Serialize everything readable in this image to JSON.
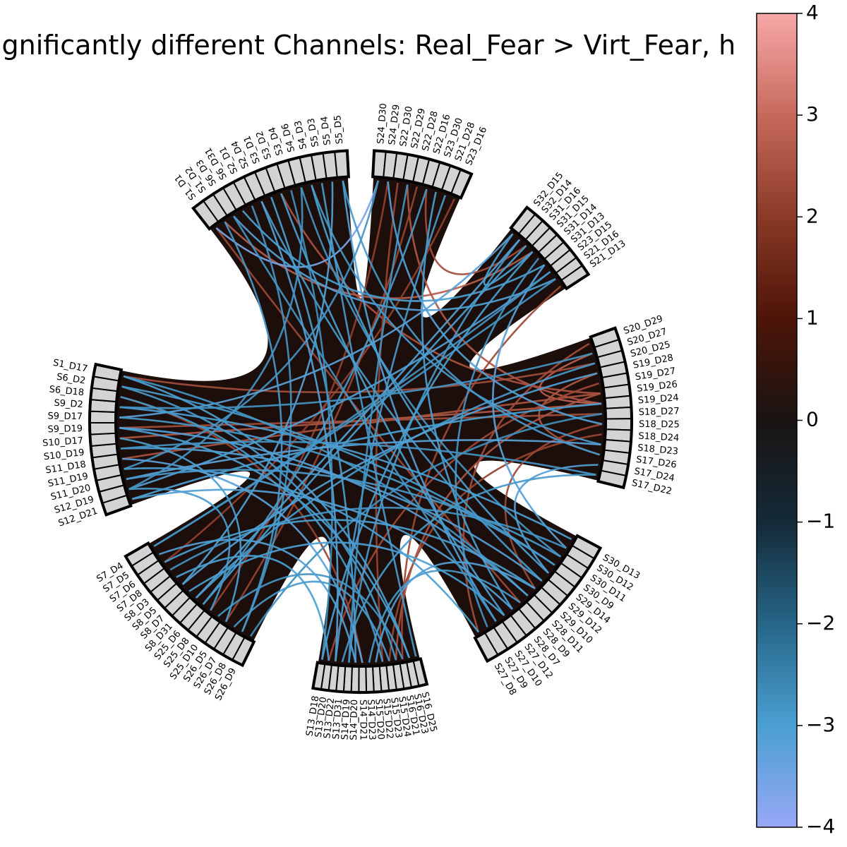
{
  "chart_data": {
    "type": "chord",
    "title": "Significantly different Channels: Real_Fear > Virt_Fear, h",
    "colorbar": {
      "min": -4,
      "max": 4,
      "ticks": [
        "4",
        "3",
        "2",
        "1",
        "0",
        "−1",
        "−2",
        "−3",
        "−4"
      ],
      "stops": [
        {
          "value": 4,
          "color": "#f7a8a8"
        },
        {
          "value": 3,
          "color": "#c76a5c"
        },
        {
          "value": 2,
          "color": "#8a3a26"
        },
        {
          "value": 1,
          "color": "#4e1508"
        },
        {
          "value": 0,
          "color": "#191412"
        },
        {
          "value": -1,
          "color": "#142a38"
        },
        {
          "value": -2,
          "color": "#266687"
        },
        {
          "value": -3,
          "color": "#4a9fd2"
        },
        {
          "value": -4,
          "color": "#98a8f6"
        }
      ]
    },
    "background_color": "#1c0e0b",
    "node_color": "#d3d3d3",
    "groups": [
      {
        "name": "g1",
        "nodes": [
          "S1_D1",
          "S1_D2",
          "S6_D3",
          "S6_D31",
          "S2_D1",
          "S2_D4",
          "S3_D1",
          "S3_D2",
          "S3_D4",
          "S4_D6",
          "S4_D3",
          "S5_D3",
          "S5_D4",
          "S5_D5"
        ]
      },
      {
        "name": "g2",
        "nodes": [
          "S24_D30",
          "S24_D29",
          "S22_D30",
          "S22_D29",
          "S22_D28",
          "S22_D16",
          "S23_D30",
          "S21_D28",
          "S23_D16"
        ]
      },
      {
        "name": "g3",
        "nodes": [
          "S32_D15",
          "S32_D14",
          "S31_D16",
          "S31_D15",
          "S31_D14",
          "S31_D13",
          "S23_D15",
          "S21_D16",
          "S21_D13"
        ]
      },
      {
        "name": "g4",
        "nodes": [
          "S20_D29",
          "S20_D27",
          "S20_D25",
          "S19_D28",
          "S19_D27",
          "S19_D26",
          "S19_D24",
          "S18_D27",
          "S18_D25",
          "S18_D24",
          "S18_D23",
          "S17_D26",
          "S17_D24",
          "S17_D22"
        ]
      },
      {
        "name": "g5",
        "nodes": [
          "S30_D13",
          "S30_D12",
          "S30_D11",
          "S30_D9",
          "S29_D14",
          "S29_D12",
          "S29_D10",
          "S28_D11",
          "S28_D9",
          "S28_D7",
          "S27_D12",
          "S27_D10",
          "S27_D9",
          "S27_D8"
        ]
      },
      {
        "name": "g6",
        "nodes": [
          "S16_D25",
          "S16_D23",
          "S16_D21",
          "S15_D24",
          "S15_D23",
          "S15_D22",
          "S15_D20",
          "S14_D23",
          "S14_D21",
          "S14_D20",
          "S14_D19",
          "S13_D31",
          "S13_D22",
          "S13_D20",
          "S13_D18"
        ]
      },
      {
        "name": "g7",
        "nodes": [
          "S26_D9",
          "S26_D8",
          "S26_D7",
          "S26_D5",
          "S25_D10",
          "S25_D8",
          "S25_D6",
          "S8_D31",
          "S8_D7",
          "S8_D5",
          "S8_D3",
          "S7_D8",
          "S7_D6",
          "S7_D5",
          "S7_D4"
        ]
      },
      {
        "name": "g8",
        "nodes": [
          "S12_D21",
          "S12_D19",
          "S11_D20",
          "S11_D19",
          "S11_D18",
          "S10_D19",
          "S10_D17",
          "S9_D19",
          "S9_D17",
          "S9_D2",
          "S6_D18",
          "S6_D2",
          "S1_D17"
        ]
      }
    ],
    "connections": [
      {
        "from": "S1_D2",
        "to": "S31_D15",
        "value": 2.7
      },
      {
        "from": "S22_D29",
        "to": "S19_D24",
        "value": 2.6
      },
      {
        "from": "S22_D16",
        "to": "S31_D16",
        "value": 2.4
      },
      {
        "from": "S3_D2",
        "to": "S19_D26",
        "value": 2.5
      },
      {
        "from": "S1_D1",
        "to": "S28_D9",
        "value": 2.3
      },
      {
        "from": "S22_D30",
        "to": "S15_D22",
        "value": 2.2
      },
      {
        "from": "S24_D29",
        "to": "S25_D8",
        "value": 2.1
      },
      {
        "from": "S10_D17",
        "to": "S19_D24",
        "value": 2.6
      },
      {
        "from": "S11_D18",
        "to": "S19_D26",
        "value": 2.5
      },
      {
        "from": "S9_D19",
        "to": "S18_D27",
        "value": 2.4
      },
      {
        "from": "S6_D18",
        "to": "S14_D21",
        "value": 2.2
      },
      {
        "from": "S20_D27",
        "to": "S19_D24",
        "value": 2.8
      },
      {
        "from": "S19_D28",
        "to": "S17_D26",
        "value": 2.6
      },
      {
        "from": "S18_D25",
        "to": "S29_D10",
        "value": 2.3
      },
      {
        "from": "S20_D29",
        "to": "S27_D8",
        "value": 2.4
      },
      {
        "from": "S19_D27",
        "to": "S13_D20",
        "value": 2.3
      },
      {
        "from": "S18_D24",
        "to": "S15_D23",
        "value": 2.2
      },
      {
        "from": "S19_D26",
        "to": "S15_D24",
        "value": 2.5
      },
      {
        "from": "S23_D16",
        "to": "S7_D6",
        "value": 2.1
      },
      {
        "from": "S21_D13",
        "to": "S16_D21",
        "value": 2.3
      },
      {
        "from": "S1_D17",
        "to": "S20_D25",
        "value": 2.4
      },
      {
        "from": "S22_D28",
        "to": "S26_D5",
        "value": 2.2
      },
      {
        "from": "S1_D1",
        "to": "S24_D30",
        "value": -3.6
      },
      {
        "from": "S6_D3",
        "to": "S21_D16",
        "value": -3.1
      },
      {
        "from": "S2_D4",
        "to": "S29_D12",
        "value": -2.9
      },
      {
        "from": "S3_D1",
        "to": "S14_D20",
        "value": -3.0
      },
      {
        "from": "S4_D6",
        "to": "S30_D11",
        "value": -2.8
      },
      {
        "from": "S5_D3",
        "to": "S16_D25",
        "value": -2.9
      },
      {
        "from": "S5_D5",
        "to": "S27_D10",
        "value": -3.1
      },
      {
        "from": "S2_D1",
        "to": "S26_D8",
        "value": -2.8
      },
      {
        "from": "S3_D4",
        "to": "S13_D18",
        "value": -2.7
      },
      {
        "from": "S6_D31",
        "to": "S31_D13",
        "value": -3.0
      },
      {
        "from": "S4_D3",
        "to": "S18_D23",
        "value": -2.9
      },
      {
        "from": "S5_D4",
        "to": "S8_D5",
        "value": -3.1
      },
      {
        "from": "S24_D30",
        "to": "S11_D19",
        "value": -2.8
      },
      {
        "from": "S23_D30",
        "to": "S28_D7",
        "value": -3.0
      },
      {
        "from": "S21_D28",
        "to": "S13_D22",
        "value": -2.9
      },
      {
        "from": "S32_D15",
        "to": "S9_D17",
        "value": -3.2
      },
      {
        "from": "S32_D14",
        "to": "S14_D19",
        "value": -2.9
      },
      {
        "from": "S31_D16",
        "to": "S25_D6",
        "value": -3.0
      },
      {
        "from": "S31_D14",
        "to": "S27_D9",
        "value": -2.8
      },
      {
        "from": "S23_D15",
        "to": "S12_D19",
        "value": -3.1
      },
      {
        "from": "S31_D13",
        "to": "S30_D12",
        "value": -3.2
      },
      {
        "from": "S21_D16",
        "to": "S7_D4",
        "value": -2.8
      },
      {
        "from": "S32_D15",
        "to": "S31_D15",
        "value": -3.0
      },
      {
        "from": "S20_D25",
        "to": "S8_D31",
        "value": -2.9
      },
      {
        "from": "S19_D24",
        "to": "S12_D21",
        "value": -3.0
      },
      {
        "from": "S18_D27",
        "to": "S26_D9",
        "value": -2.7
      },
      {
        "from": "S17_D24",
        "to": "S29_D14",
        "value": -3.1
      },
      {
        "from": "S17_D22",
        "to": "S13_D31",
        "value": -2.9
      },
      {
        "from": "S18_D23",
        "to": "S11_D20",
        "value": -3.2
      },
      {
        "from": "S30_D13",
        "to": "S9_D2",
        "value": -3.0
      },
      {
        "from": "S30_D9",
        "to": "S6_D2",
        "value": -2.9
      },
      {
        "from": "S29_D12",
        "to": "S10_D19",
        "value": -3.1
      },
      {
        "from": "S28_D11",
        "to": "S1_D17",
        "value": -2.8
      },
      {
        "from": "S27_D12",
        "to": "S8_D7",
        "value": -3.0
      },
      {
        "from": "S28_D9",
        "to": "S14_D23",
        "value": -2.9
      },
      {
        "from": "S29_D10",
        "to": "S15_D20",
        "value": -3.1
      },
      {
        "from": "S30_D12",
        "to": "S7_D8",
        "value": -2.8
      },
      {
        "from": "S16_D23",
        "to": "S9_D19",
        "value": -3.0
      },
      {
        "from": "S15_D22",
        "to": "S6_D18",
        "value": -2.9
      },
      {
        "from": "S14_D21",
        "to": "S11_D18",
        "value": -3.2
      },
      {
        "from": "S13_D20",
        "to": "S8_D3",
        "value": -3.0
      },
      {
        "from": "S16_D21",
        "to": "S25_D10",
        "value": -2.8
      },
      {
        "from": "S15_D23",
        "to": "S26_D7",
        "value": -2.9
      },
      {
        "from": "S14_D20",
        "to": "S7_D5",
        "value": -3.1
      },
      {
        "from": "S25_D8",
        "to": "S12_D19",
        "value": -2.9
      },
      {
        "from": "S26_D5",
        "to": "S10_D17",
        "value": -3.0
      },
      {
        "from": "S8_D31",
        "to": "S32_D14",
        "value": -3.1
      },
      {
        "from": "S7_D4",
        "to": "S23_D15",
        "value": -2.8
      },
      {
        "from": "S11_D19",
        "to": "S27_D8",
        "value": -3.0
      },
      {
        "from": "S9_D17",
        "to": "S30_D9",
        "value": -2.9
      },
      {
        "from": "S12_D21",
        "to": "S28_D7",
        "value": -3.1
      },
      {
        "from": "S10_D19",
        "to": "S17_D22",
        "value": -2.8
      },
      {
        "from": "S1_D17",
        "to": "S16_D23",
        "value": -3.0
      },
      {
        "from": "S6_D2",
        "to": "S15_D24",
        "value": -2.9
      },
      {
        "from": "S3_D2",
        "to": "S27_D12",
        "value": -3.0
      },
      {
        "from": "S22_D29",
        "to": "S14_D19",
        "value": -2.8
      },
      {
        "from": "S24_D29",
        "to": "S18_D25",
        "value": -3.1
      },
      {
        "from": "S22_D16",
        "to": "S25_D6",
        "value": -2.9
      },
      {
        "from": "S31_D15",
        "to": "S13_D18",
        "value": -3.0
      },
      {
        "from": "S20_D27",
        "to": "S9_D2",
        "value": -2.8
      },
      {
        "from": "S19_D28",
        "to": "S8_D5",
        "value": -3.1
      },
      {
        "from": "S17_D26",
        "to": "S5_D5",
        "value": -2.9
      },
      {
        "from": "S29_D14",
        "to": "S4_D3",
        "value": -3.0
      },
      {
        "from": "S27_D10",
        "to": "S6_D3",
        "value": -2.8
      },
      {
        "from": "S13_D22",
        "to": "S2_D4",
        "value": -3.1
      },
      {
        "from": "S26_D8",
        "to": "S1_D2",
        "value": -2.9
      },
      {
        "from": "S7_D6",
        "to": "S29_D10",
        "value": -3.0
      },
      {
        "from": "S11_D20",
        "to": "S30_D11",
        "value": -2.9
      },
      {
        "from": "S9_D19",
        "to": "S28_D11",
        "value": -3.1
      },
      {
        "from": "S4_D6",
        "to": "S12_D19",
        "value": -2.8
      }
    ]
  }
}
